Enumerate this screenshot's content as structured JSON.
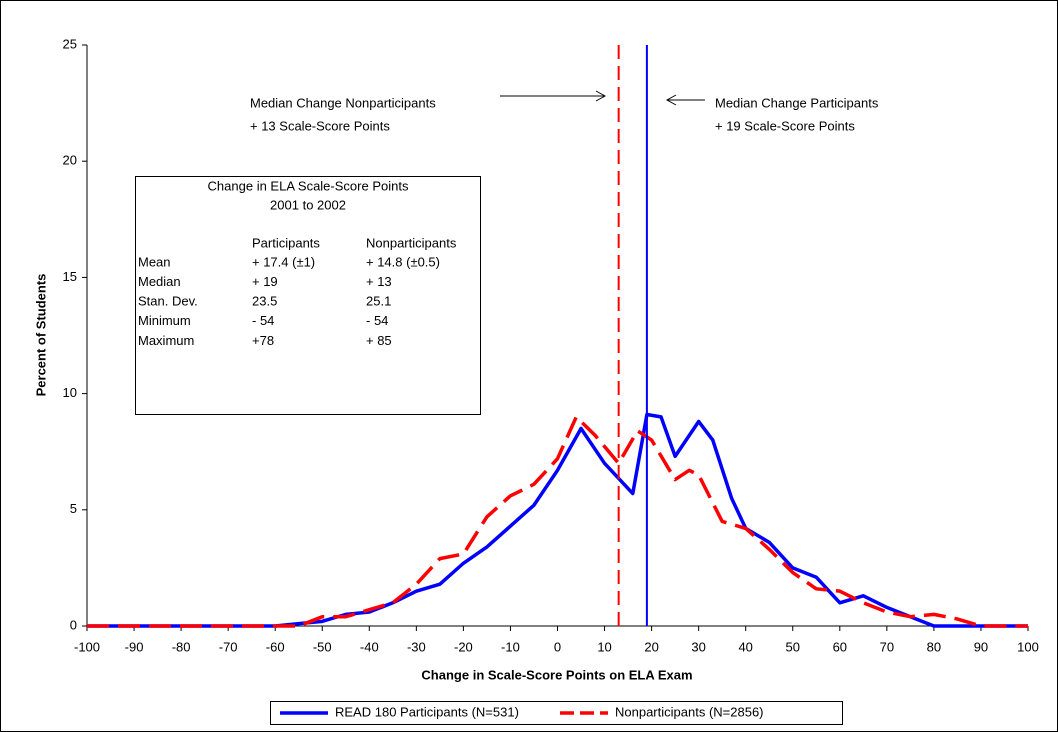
{
  "chart_data": {
    "type": "line",
    "xlabel": "Change in Scale-Score Points on ELA Exam",
    "ylabel": "Percent of Students",
    "xlim": [
      -100,
      100
    ],
    "ylim": [
      0,
      25
    ],
    "xticks": [
      -100,
      -90,
      -80,
      -70,
      -60,
      -50,
      -40,
      -30,
      -20,
      -10,
      0,
      10,
      20,
      30,
      40,
      50,
      60,
      70,
      80,
      90,
      100
    ],
    "yticks": [
      0,
      5,
      10,
      15,
      20,
      25
    ],
    "grid": false,
    "series": [
      {
        "name": "READ 180 Participants (N=531)",
        "color": "#0000ff",
        "dashed": false,
        "x": [
          -100,
          -95,
          -90,
          -85,
          -80,
          -75,
          -70,
          -65,
          -60,
          -55,
          -50,
          -45,
          -40,
          -35,
          -30,
          -25,
          -20,
          -15,
          -10,
          -5,
          0,
          5,
          10,
          16,
          19,
          22,
          25,
          30,
          33,
          37,
          40,
          45,
          50,
          55,
          60,
          65,
          70,
          75,
          80,
          85,
          90,
          95,
          100
        ],
        "values": [
          0,
          0,
          0,
          0,
          0,
          0,
          0,
          0,
          0,
          0.1,
          0.2,
          0.5,
          0.6,
          1.0,
          1.5,
          1.8,
          2.7,
          3.4,
          4.3,
          5.2,
          6.7,
          8.5,
          7.0,
          5.7,
          9.1,
          9.0,
          7.3,
          8.8,
          8.0,
          5.5,
          4.2,
          3.6,
          2.5,
          2.1,
          1.0,
          1.3,
          0.8,
          0.4,
          0,
          0,
          0,
          0,
          0
        ]
      },
      {
        "name": "Nonparticipants (N=2856)",
        "color": "#ff0000",
        "dashed": true,
        "x": [
          -100,
          -95,
          -90,
          -85,
          -80,
          -75,
          -70,
          -65,
          -60,
          -55,
          -50,
          -45,
          -40,
          -35,
          -30,
          -25,
          -20,
          -15,
          -10,
          -5,
          0,
          4,
          8,
          13,
          17,
          20,
          25,
          28,
          30,
          35,
          40,
          45,
          50,
          55,
          60,
          65,
          70,
          75,
          80,
          85,
          90,
          95,
          100
        ],
        "values": [
          0,
          0,
          0,
          0,
          0,
          0,
          0,
          0,
          0,
          0,
          0.4,
          0.4,
          0.7,
          1.0,
          1.8,
          2.9,
          3.1,
          4.7,
          5.6,
          6.1,
          7.2,
          9.0,
          8.2,
          7.0,
          8.4,
          8.0,
          6.3,
          6.7,
          6.5,
          4.5,
          4.2,
          3.3,
          2.3,
          1.6,
          1.5,
          1.0,
          0.6,
          0.4,
          0.5,
          0.3,
          0,
          0,
          0
        ]
      }
    ],
    "median_lines": [
      {
        "x": 13,
        "color": "#ff0000",
        "dashed": true
      },
      {
        "x": 19,
        "color": "#0000ff",
        "dashed": false
      }
    ],
    "annotations": [
      {
        "lines": [
          "Median Change Nonparticipants",
          "+ 13 Scale-Score Points"
        ]
      },
      {
        "lines": [
          "Median Change Participants",
          "+ 19 Scale-Score Points"
        ]
      }
    ],
    "stats_table": {
      "title": [
        "Change in ELA Scale-Score Points",
        "2001 to 2002"
      ],
      "header": [
        "Participants",
        "Nonparticipants"
      ],
      "rows": [
        [
          "Mean",
          "+ 17.4 (±1)",
          "+ 14.8 (±0.5)"
        ],
        [
          "Median",
          "+ 19",
          "+ 13"
        ],
        [
          "Stan. Dev.",
          "23.5",
          "25.1"
        ],
        [
          "Minimum",
          "- 54",
          "- 54"
        ],
        [
          "Maximum",
          "+78",
          "+ 85"
        ]
      ]
    }
  }
}
